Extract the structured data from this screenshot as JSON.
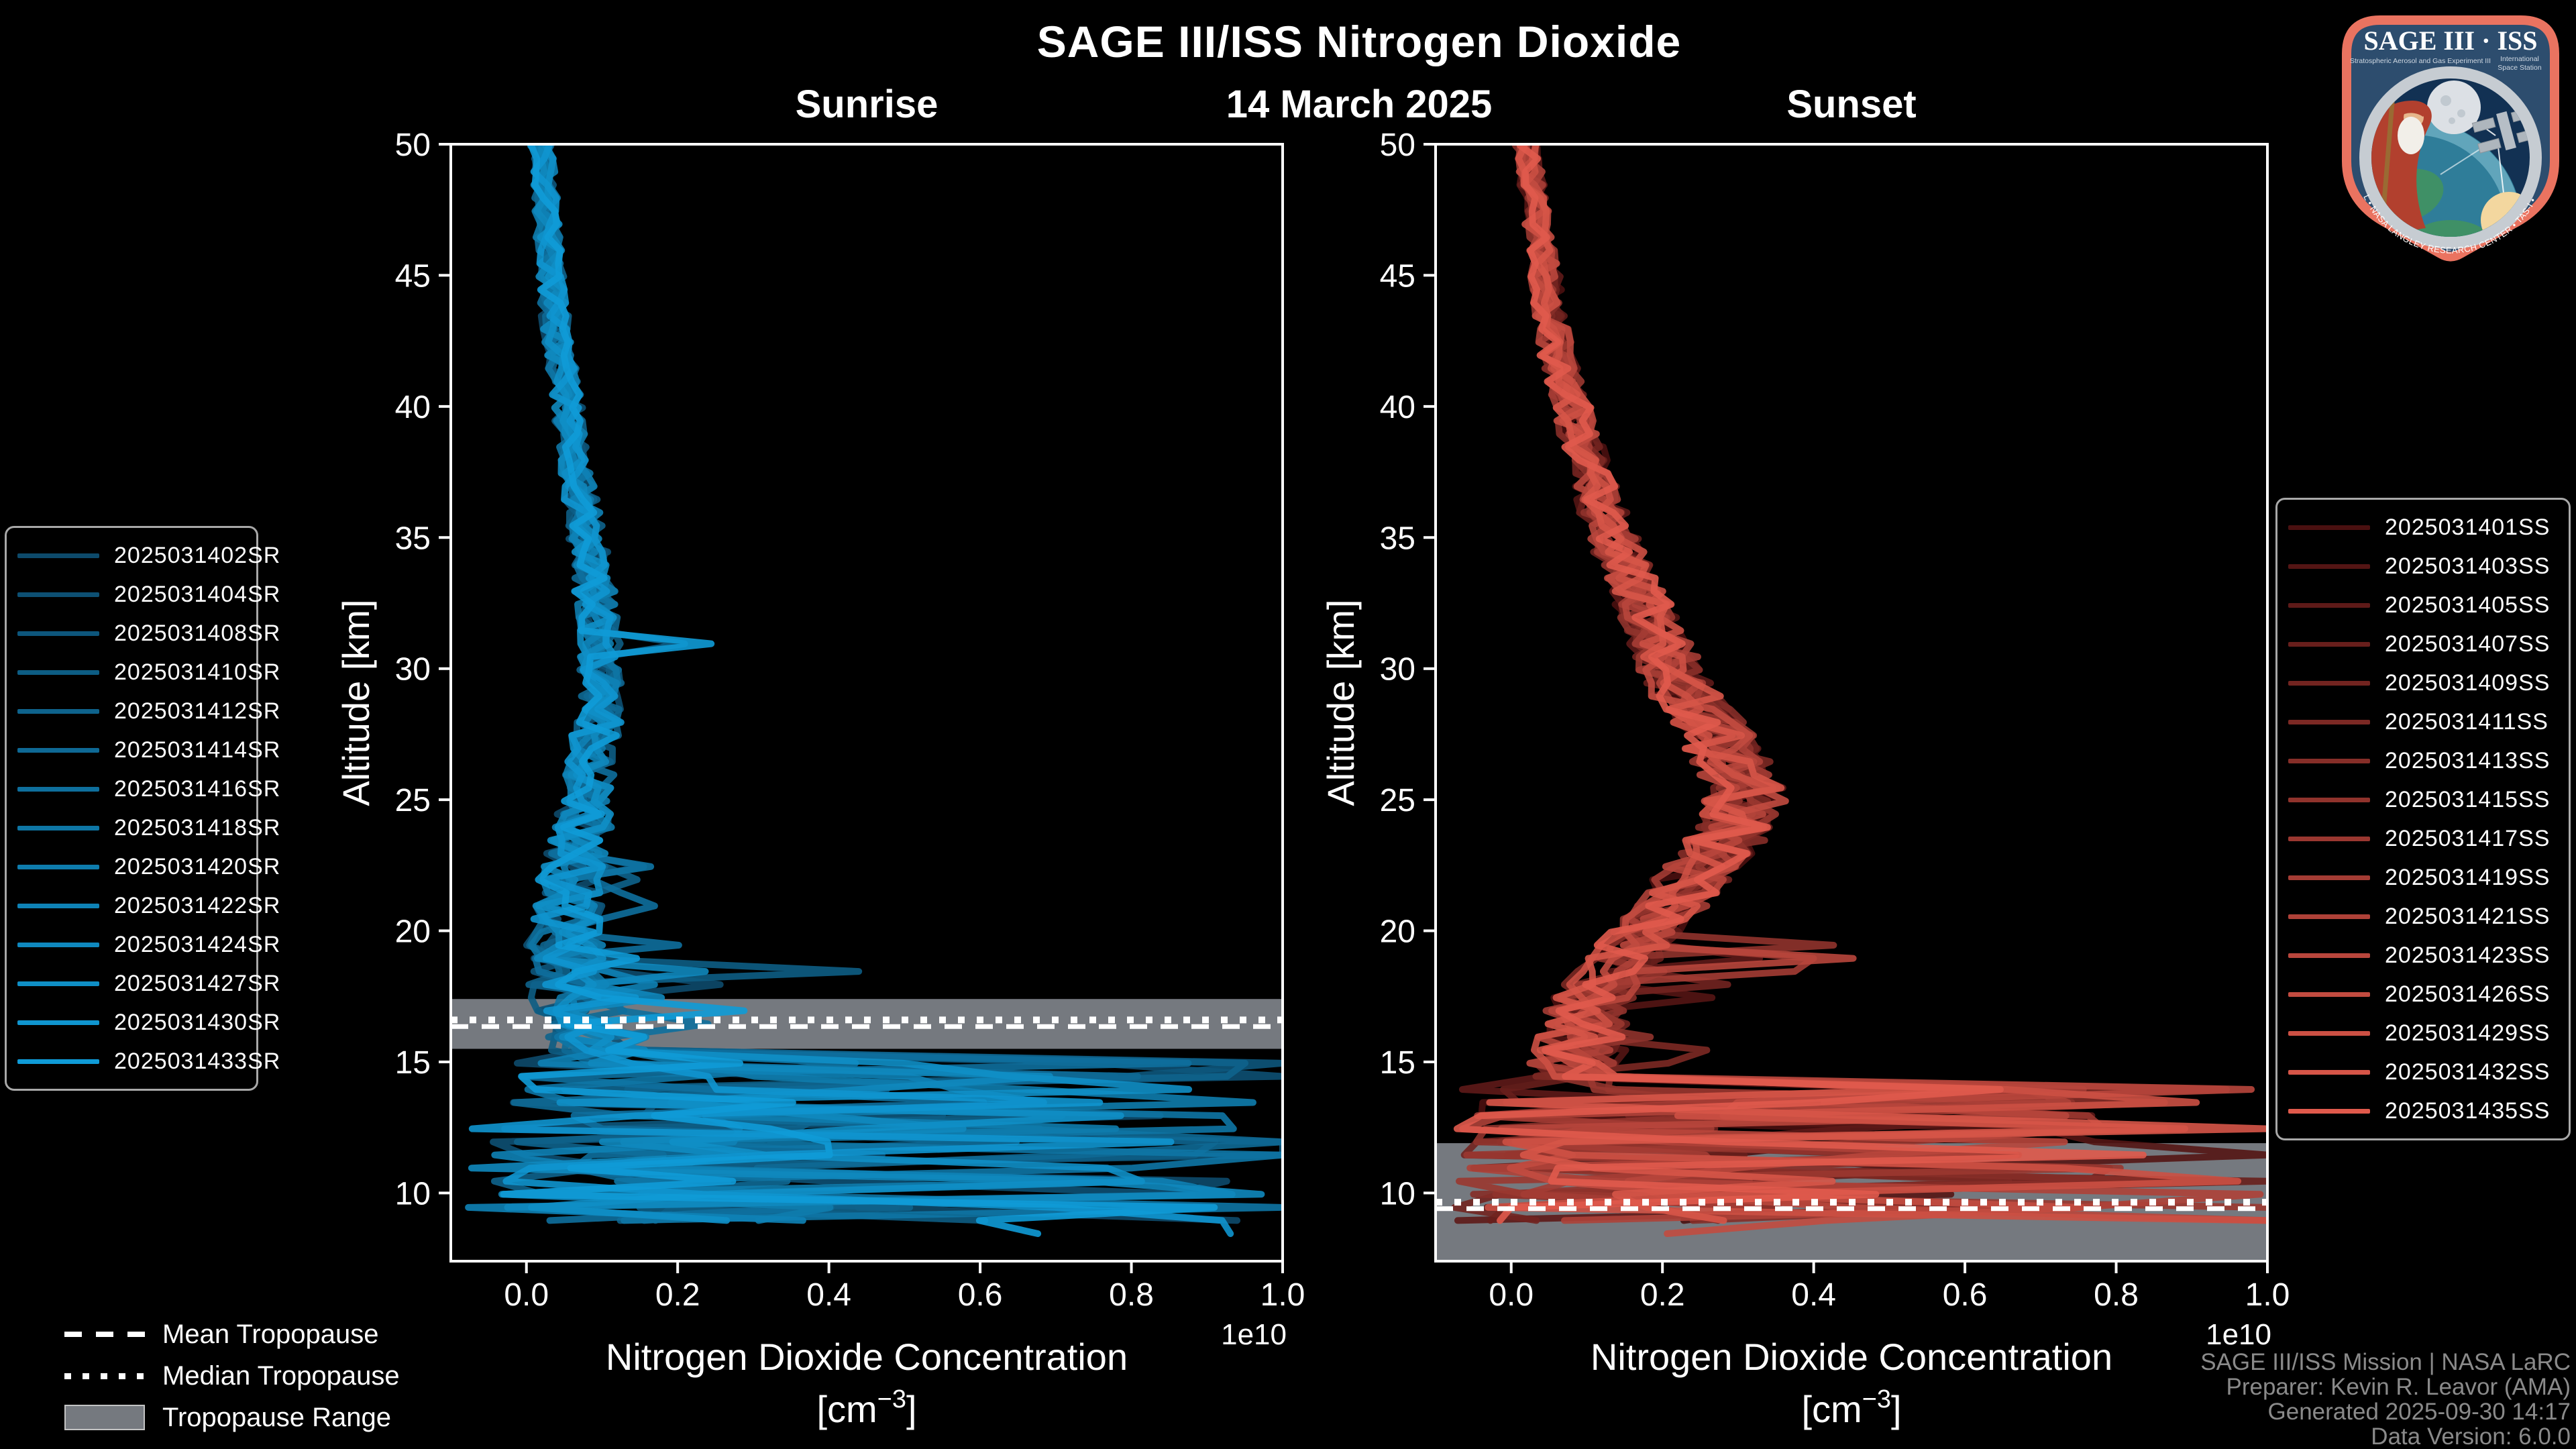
{
  "header": {
    "title": "SAGE III/ISS Nitrogen Dioxide",
    "date": "14 March 2025"
  },
  "footer": {
    "lines": [
      "SAGE III/ISS Mission | NASA LaRC",
      "Preparer: Kevin R. Leavor (AMA)",
      "Generated 2025-09-30 14:17",
      "Data Version: 6.0.0"
    ]
  },
  "tropopause_legend": {
    "mean": "Mean Tropopause",
    "median": "Median Tropopause",
    "range": "Tropopause Range"
  },
  "logo": {
    "title": "SAGE III · ISS",
    "subtitle_left": "Stratospheric Aerosol and Gas Experiment III",
    "subtitle_right_1": "International",
    "subtitle_right_2": "Space Station",
    "bottom_text": "BALL • NASA LANGLEY RESEARCH CENTER • TAS-I • ESA"
  },
  "colors": {
    "background": "#000000",
    "foreground": "#ffffff",
    "footer_text": "#8a8a8a",
    "tropopause_band": "#75797f",
    "legend_border": "#a8a8a8",
    "sunrise_color_start": "#0d4a6b",
    "sunrise_color_end": "#0f9bd7",
    "sunset_color_start": "#4a1010",
    "sunset_color_end": "#e05a4c"
  },
  "chart_data": {
    "type": "line",
    "title": "SAGE III/ISS Nitrogen Dioxide",
    "subtitle": "14 March 2025",
    "xlabel_line1": "Nitrogen Dioxide Concentration",
    "xlabel_unit": "[cm⁻³]",
    "ylabel": "Altitude [km]",
    "x_scale_offset": "1e10",
    "xlim": [
      -0.1,
      1.0
    ],
    "ylim": [
      7.4,
      50
    ],
    "xticks": [
      0.0,
      0.2,
      0.4,
      0.6,
      0.8,
      1.0
    ],
    "yticks": [
      50,
      45,
      40,
      35,
      30,
      25,
      20,
      15,
      10
    ],
    "grid": false,
    "panels": [
      {
        "id": "sunrise",
        "title": "Sunrise",
        "legend_position": "left",
        "series_color_start": "#0d4a6b",
        "series_color_end": "#0f9bd7",
        "events": [
          "2025031402SR",
          "2025031404SR",
          "2025031408SR",
          "2025031410SR",
          "2025031412SR",
          "2025031414SR",
          "2025031416SR",
          "2025031418SR",
          "2025031420SR",
          "2025031422SR",
          "2025031424SR",
          "2025031427SR",
          "2025031430SR",
          "2025031433SR"
        ],
        "median_profile": {
          "altitude_km": [
            50,
            48,
            46,
            44,
            42,
            40,
            38,
            36,
            34,
            32,
            30,
            28,
            26,
            24,
            22,
            20,
            18,
            17,
            16,
            15.5
          ],
          "concentration_1e10": [
            0.02,
            0.025,
            0.03,
            0.035,
            0.045,
            0.055,
            0.065,
            0.075,
            0.085,
            0.095,
            0.1,
            0.095,
            0.085,
            0.075,
            0.06,
            0.05,
            0.055,
            0.07,
            0.09,
            0.1
          ]
        },
        "noise_amplitude_1e10": [
          [
            50,
            0.015
          ],
          [
            40,
            0.02
          ],
          [
            30,
            0.03
          ],
          [
            25,
            0.035
          ],
          [
            20,
            0.05
          ],
          [
            17,
            0.06
          ],
          [
            15.5,
            0.07
          ]
        ],
        "chaos_below_km": 15.45,
        "tropopause": {
          "mean_km": 16.35,
          "median_km": 16.6,
          "range_top_km": 17.4,
          "range_bottom_km": 15.5
        }
      },
      {
        "id": "sunset",
        "title": "Sunset",
        "legend_position": "right",
        "series_color_start": "#4a1010",
        "series_color_end": "#e05a4c",
        "events": [
          "2025031401SS",
          "2025031403SS",
          "2025031405SS",
          "2025031407SS",
          "2025031409SS",
          "2025031411SS",
          "2025031413SS",
          "2025031415SS",
          "2025031417SS",
          "2025031419SS",
          "2025031421SS",
          "2025031423SS",
          "2025031426SS",
          "2025031429SS",
          "2025031432SS",
          "2025031435SS"
        ],
        "median_profile": {
          "altitude_km": [
            50,
            48,
            46,
            44,
            42,
            40,
            38,
            36,
            34,
            32,
            30,
            29,
            28,
            27,
            26,
            25,
            24,
            23,
            22,
            21,
            20,
            19,
            18,
            17,
            16,
            15,
            14.5
          ],
          "concentration_1e10": [
            0.02,
            0.03,
            0.04,
            0.05,
            0.06,
            0.08,
            0.1,
            0.12,
            0.15,
            0.18,
            0.21,
            0.23,
            0.26,
            0.28,
            0.3,
            0.31,
            0.3,
            0.27,
            0.24,
            0.21,
            0.18,
            0.15,
            0.12,
            0.1,
            0.09,
            0.09,
            0.1
          ]
        },
        "noise_amplitude_1e10": [
          [
            50,
            0.015
          ],
          [
            40,
            0.025
          ],
          [
            32,
            0.04
          ],
          [
            28,
            0.05
          ],
          [
            25,
            0.055
          ],
          [
            20,
            0.05
          ],
          [
            16,
            0.06
          ],
          [
            14.4,
            0.07
          ]
        ],
        "chaos_below_km": 14.4,
        "tropopause": {
          "mean_km": 9.4,
          "median_km": 9.65,
          "range_top_km": 11.9,
          "range_bottom_km": 7.4
        }
      }
    ]
  }
}
